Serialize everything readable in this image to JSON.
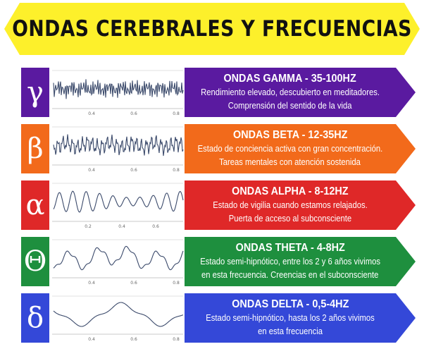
{
  "title": "ONDAS CEREBRALES Y FRECUENCIAS",
  "colors": {
    "banner": "#fdf02b",
    "gamma": "#5a1aa0",
    "beta": "#f26a1b",
    "alpha": "#df2828",
    "theta": "#1e8f3e",
    "delta": "#3448d8"
  },
  "waves": [
    {
      "id": "gamma",
      "symbol": "γ",
      "heading": "ONDAS GAMMA - 35-100HZ",
      "line1": "Rendimiento elevado, descubierto en meditadores.",
      "line2": "Comprensión del sentido de la vida",
      "tick_labels": [
        "0.4",
        "0.6",
        "0.8"
      ]
    },
    {
      "id": "beta",
      "symbol": "β",
      "heading": "ONDAS BETA - 12-35HZ",
      "line1": "Estado de conciencia activa con gran concentración.",
      "line2": "Tareas mentales con atención sostenida",
      "tick_labels": [
        "0.4",
        "0.6",
        "0.8"
      ]
    },
    {
      "id": "alpha",
      "symbol": "α",
      "heading": "ONDAS ALPHA - 8-12HZ",
      "line1": "Estado de vigilia cuando estamos relajados.",
      "line2": "Puerta de acceso al subconsciente",
      "tick_labels": [
        "0.2",
        "0.4",
        "0.6",
        "0.8"
      ]
    },
    {
      "id": "theta",
      "symbol": "Θ",
      "heading": "ONDAS THETA - 4-8HZ",
      "line1": "Estado semi-hipnótico, entre los 2 y 6 años vivimos",
      "line2": "en esta frecuencia. Creencias en el subconsciente",
      "tick_labels": [
        "0.4",
        "0.6",
        "0.8"
      ]
    },
    {
      "id": "delta",
      "symbol": "δ",
      "heading": "ONDAS DELTA - 0,5-4HZ",
      "line1": "Estado semi-hipnótico, hasta los 2 años vivimos",
      "line2": "en esta frecuencia",
      "tick_labels": [
        "0.4",
        "0.6",
        "0.8"
      ]
    }
  ]
}
